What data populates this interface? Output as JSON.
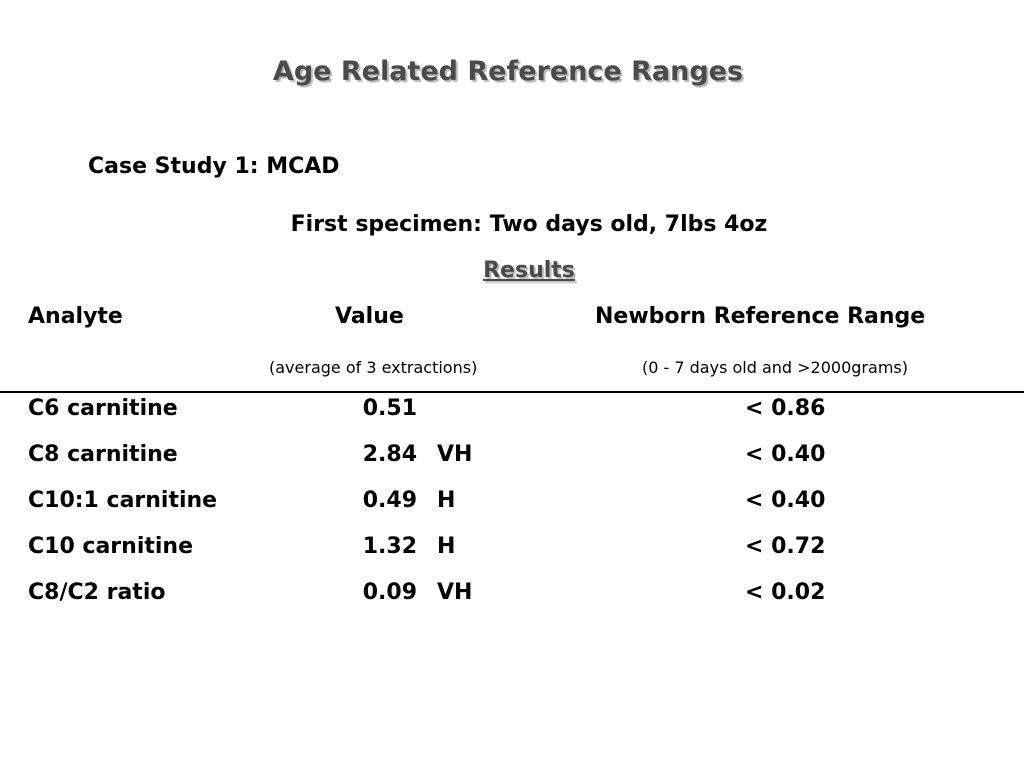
{
  "title": "Age Related Reference Ranges",
  "case_study": "Case Study 1: MCAD",
  "specimen": "First specimen: Two days old, 7lbs 4oz",
  "results_heading": "Results",
  "columns": {
    "analyte": "Analyte",
    "value": "Value",
    "range": "Newborn Reference Range",
    "value_note": "(average of 3 extractions)",
    "range_note": "(0 - 7 days old and >2000grams)"
  },
  "rows": [
    {
      "analyte": "C6 carnitine",
      "value": "0.51",
      "flag": "",
      "range": "< 0.86"
    },
    {
      "analyte": "C8 carnitine",
      "value": "2.84",
      "flag": "VH",
      "range": "< 0.40"
    },
    {
      "analyte": "C10:1 carnitine",
      "value": "0.49",
      "flag": "H",
      "range": "< 0.40"
    },
    {
      "analyte": "C10 carnitine",
      "value": "1.32",
      "flag": "H",
      "range": "< 0.72"
    },
    {
      "analyte": "C8/C2 ratio",
      "value": "0.09",
      "flag": "VH",
      "range": "< 0.02"
    }
  ]
}
